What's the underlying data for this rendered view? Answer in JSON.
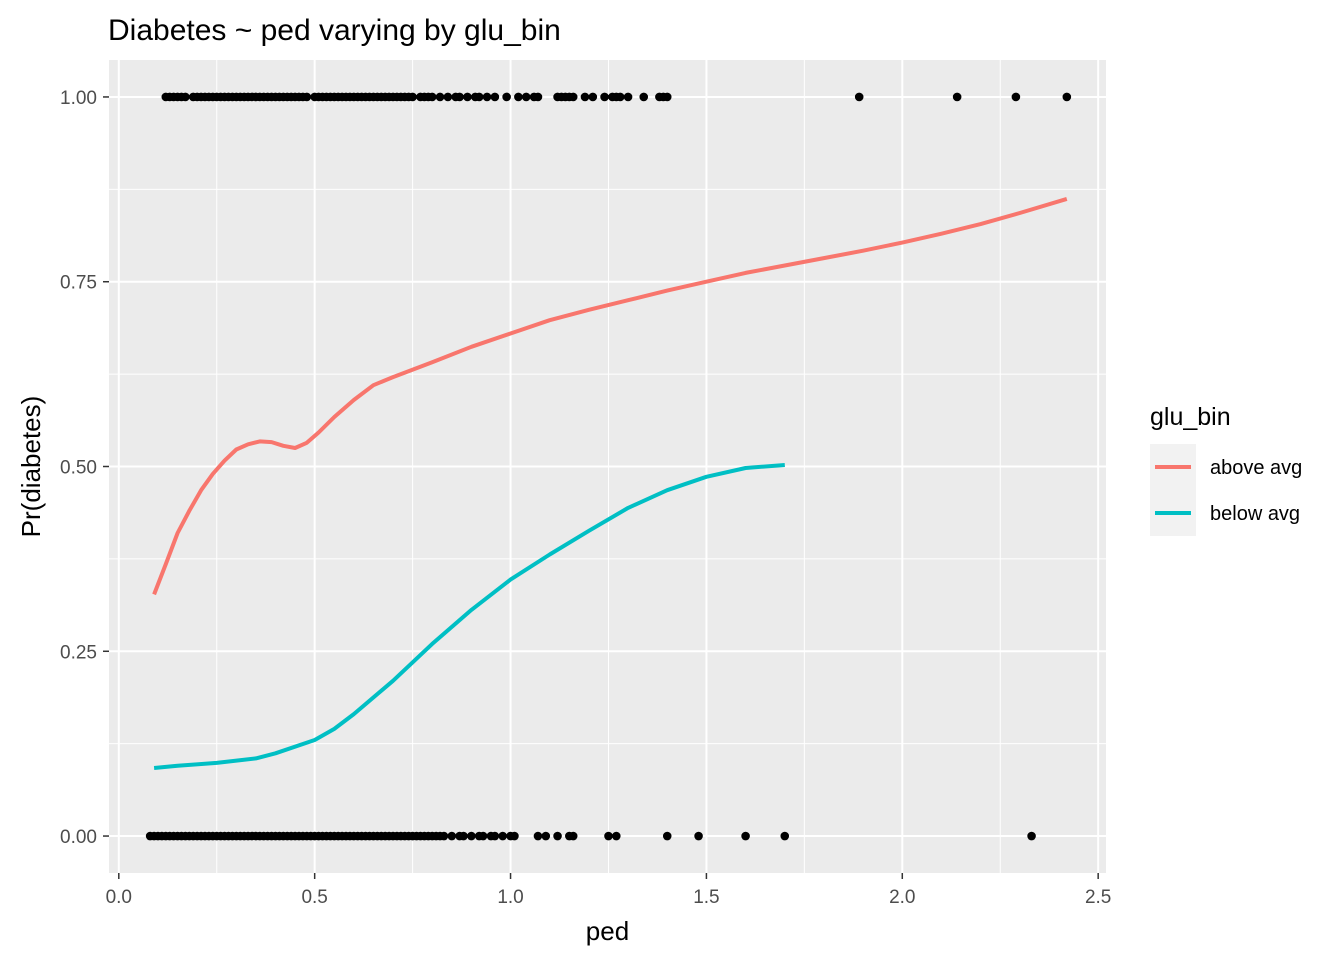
{
  "chart_data": {
    "type": "scatter",
    "title": "Diabetes ~ ped varying by glu_bin",
    "xlabel": "ped",
    "ylabel": "Pr(diabetes)",
    "xlim": [
      -0.025,
      2.52
    ],
    "ylim": [
      -0.05,
      1.05
    ],
    "x_ticks": [
      0.0,
      0.5,
      1.0,
      1.5,
      2.0,
      2.5
    ],
    "x_tick_labels": [
      "0.0",
      "0.5",
      "1.0",
      "1.5",
      "2.0",
      "2.5"
    ],
    "y_ticks": [
      0.0,
      0.25,
      0.5,
      0.75,
      1.0
    ],
    "y_tick_labels": [
      "0.00",
      "0.25",
      "0.50",
      "0.75",
      "1.00"
    ],
    "grid": true,
    "panel_background": "#ebebeb",
    "grid_color": "#ffffff",
    "legend": {
      "title": "glu_bin",
      "placement": "right",
      "entries": [
        "above avg",
        "below avg"
      ]
    },
    "points": {
      "color": "#000000",
      "y1_x": [
        0.12,
        0.13,
        0.14,
        0.15,
        0.16,
        0.17,
        0.19,
        0.2,
        0.21,
        0.22,
        0.23,
        0.24,
        0.25,
        0.26,
        0.27,
        0.28,
        0.29,
        0.3,
        0.31,
        0.32,
        0.33,
        0.34,
        0.35,
        0.36,
        0.37,
        0.38,
        0.39,
        0.4,
        0.41,
        0.42,
        0.43,
        0.44,
        0.45,
        0.46,
        0.47,
        0.48,
        0.5,
        0.51,
        0.52,
        0.53,
        0.54,
        0.55,
        0.56,
        0.57,
        0.58,
        0.59,
        0.6,
        0.61,
        0.62,
        0.63,
        0.64,
        0.65,
        0.66,
        0.67,
        0.68,
        0.69,
        0.7,
        0.71,
        0.72,
        0.73,
        0.74,
        0.75,
        0.77,
        0.78,
        0.79,
        0.8,
        0.82,
        0.84,
        0.86,
        0.87,
        0.89,
        0.91,
        0.92,
        0.94,
        0.96,
        0.99,
        1.02,
        1.04,
        1.06,
        1.07,
        1.12,
        1.13,
        1.14,
        1.15,
        1.16,
        1.19,
        1.21,
        1.24,
        1.26,
        1.27,
        1.28,
        1.3,
        1.34,
        1.38,
        1.39,
        1.4,
        1.89,
        2.14,
        2.29,
        2.42
      ],
      "y0_x": [
        0.08,
        0.09,
        0.1,
        0.11,
        0.12,
        0.13,
        0.14,
        0.15,
        0.16,
        0.17,
        0.18,
        0.19,
        0.2,
        0.21,
        0.22,
        0.23,
        0.24,
        0.25,
        0.26,
        0.27,
        0.28,
        0.29,
        0.3,
        0.31,
        0.32,
        0.33,
        0.34,
        0.35,
        0.36,
        0.37,
        0.38,
        0.39,
        0.4,
        0.41,
        0.42,
        0.43,
        0.44,
        0.45,
        0.46,
        0.47,
        0.48,
        0.49,
        0.5,
        0.51,
        0.52,
        0.53,
        0.54,
        0.55,
        0.56,
        0.57,
        0.58,
        0.59,
        0.6,
        0.61,
        0.62,
        0.63,
        0.64,
        0.65,
        0.66,
        0.67,
        0.68,
        0.69,
        0.7,
        0.71,
        0.72,
        0.73,
        0.74,
        0.75,
        0.76,
        0.77,
        0.78,
        0.79,
        0.8,
        0.81,
        0.82,
        0.83,
        0.85,
        0.87,
        0.88,
        0.9,
        0.92,
        0.93,
        0.95,
        0.96,
        0.98,
        1.0,
        1.01,
        1.07,
        1.09,
        1.12,
        1.15,
        1.16,
        1.25,
        1.27,
        1.4,
        1.48,
        1.6,
        1.7,
        2.33
      ]
    },
    "series": [
      {
        "name": "above avg",
        "color": "#f8766d",
        "x": [
          0.09,
          0.12,
          0.15,
          0.18,
          0.21,
          0.24,
          0.27,
          0.3,
          0.33,
          0.36,
          0.39,
          0.42,
          0.45,
          0.48,
          0.51,
          0.55,
          0.6,
          0.65,
          0.7,
          0.8,
          0.9,
          1.0,
          1.1,
          1.2,
          1.3,
          1.4,
          1.5,
          1.6,
          1.7,
          1.8,
          1.9,
          2.0,
          2.1,
          2.2,
          2.3,
          2.42
        ],
        "y": [
          0.327,
          0.368,
          0.41,
          0.44,
          0.468,
          0.49,
          0.508,
          0.523,
          0.53,
          0.534,
          0.533,
          0.528,
          0.525,
          0.532,
          0.546,
          0.567,
          0.59,
          0.61,
          0.621,
          0.641,
          0.662,
          0.68,
          0.698,
          0.712,
          0.725,
          0.738,
          0.75,
          0.762,
          0.772,
          0.782,
          0.792,
          0.803,
          0.815,
          0.828,
          0.843,
          0.862
        ]
      },
      {
        "name": "below avg",
        "color": "#00bfc4",
        "x": [
          0.09,
          0.15,
          0.25,
          0.35,
          0.4,
          0.5,
          0.55,
          0.6,
          0.7,
          0.8,
          0.9,
          1.0,
          1.1,
          1.2,
          1.3,
          1.4,
          1.5,
          1.6,
          1.7
        ],
        "y": [
          0.092,
          0.095,
          0.099,
          0.105,
          0.112,
          0.13,
          0.145,
          0.165,
          0.21,
          0.26,
          0.306,
          0.347,
          0.381,
          0.413,
          0.444,
          0.468,
          0.486,
          0.498,
          0.502
        ]
      }
    ]
  }
}
